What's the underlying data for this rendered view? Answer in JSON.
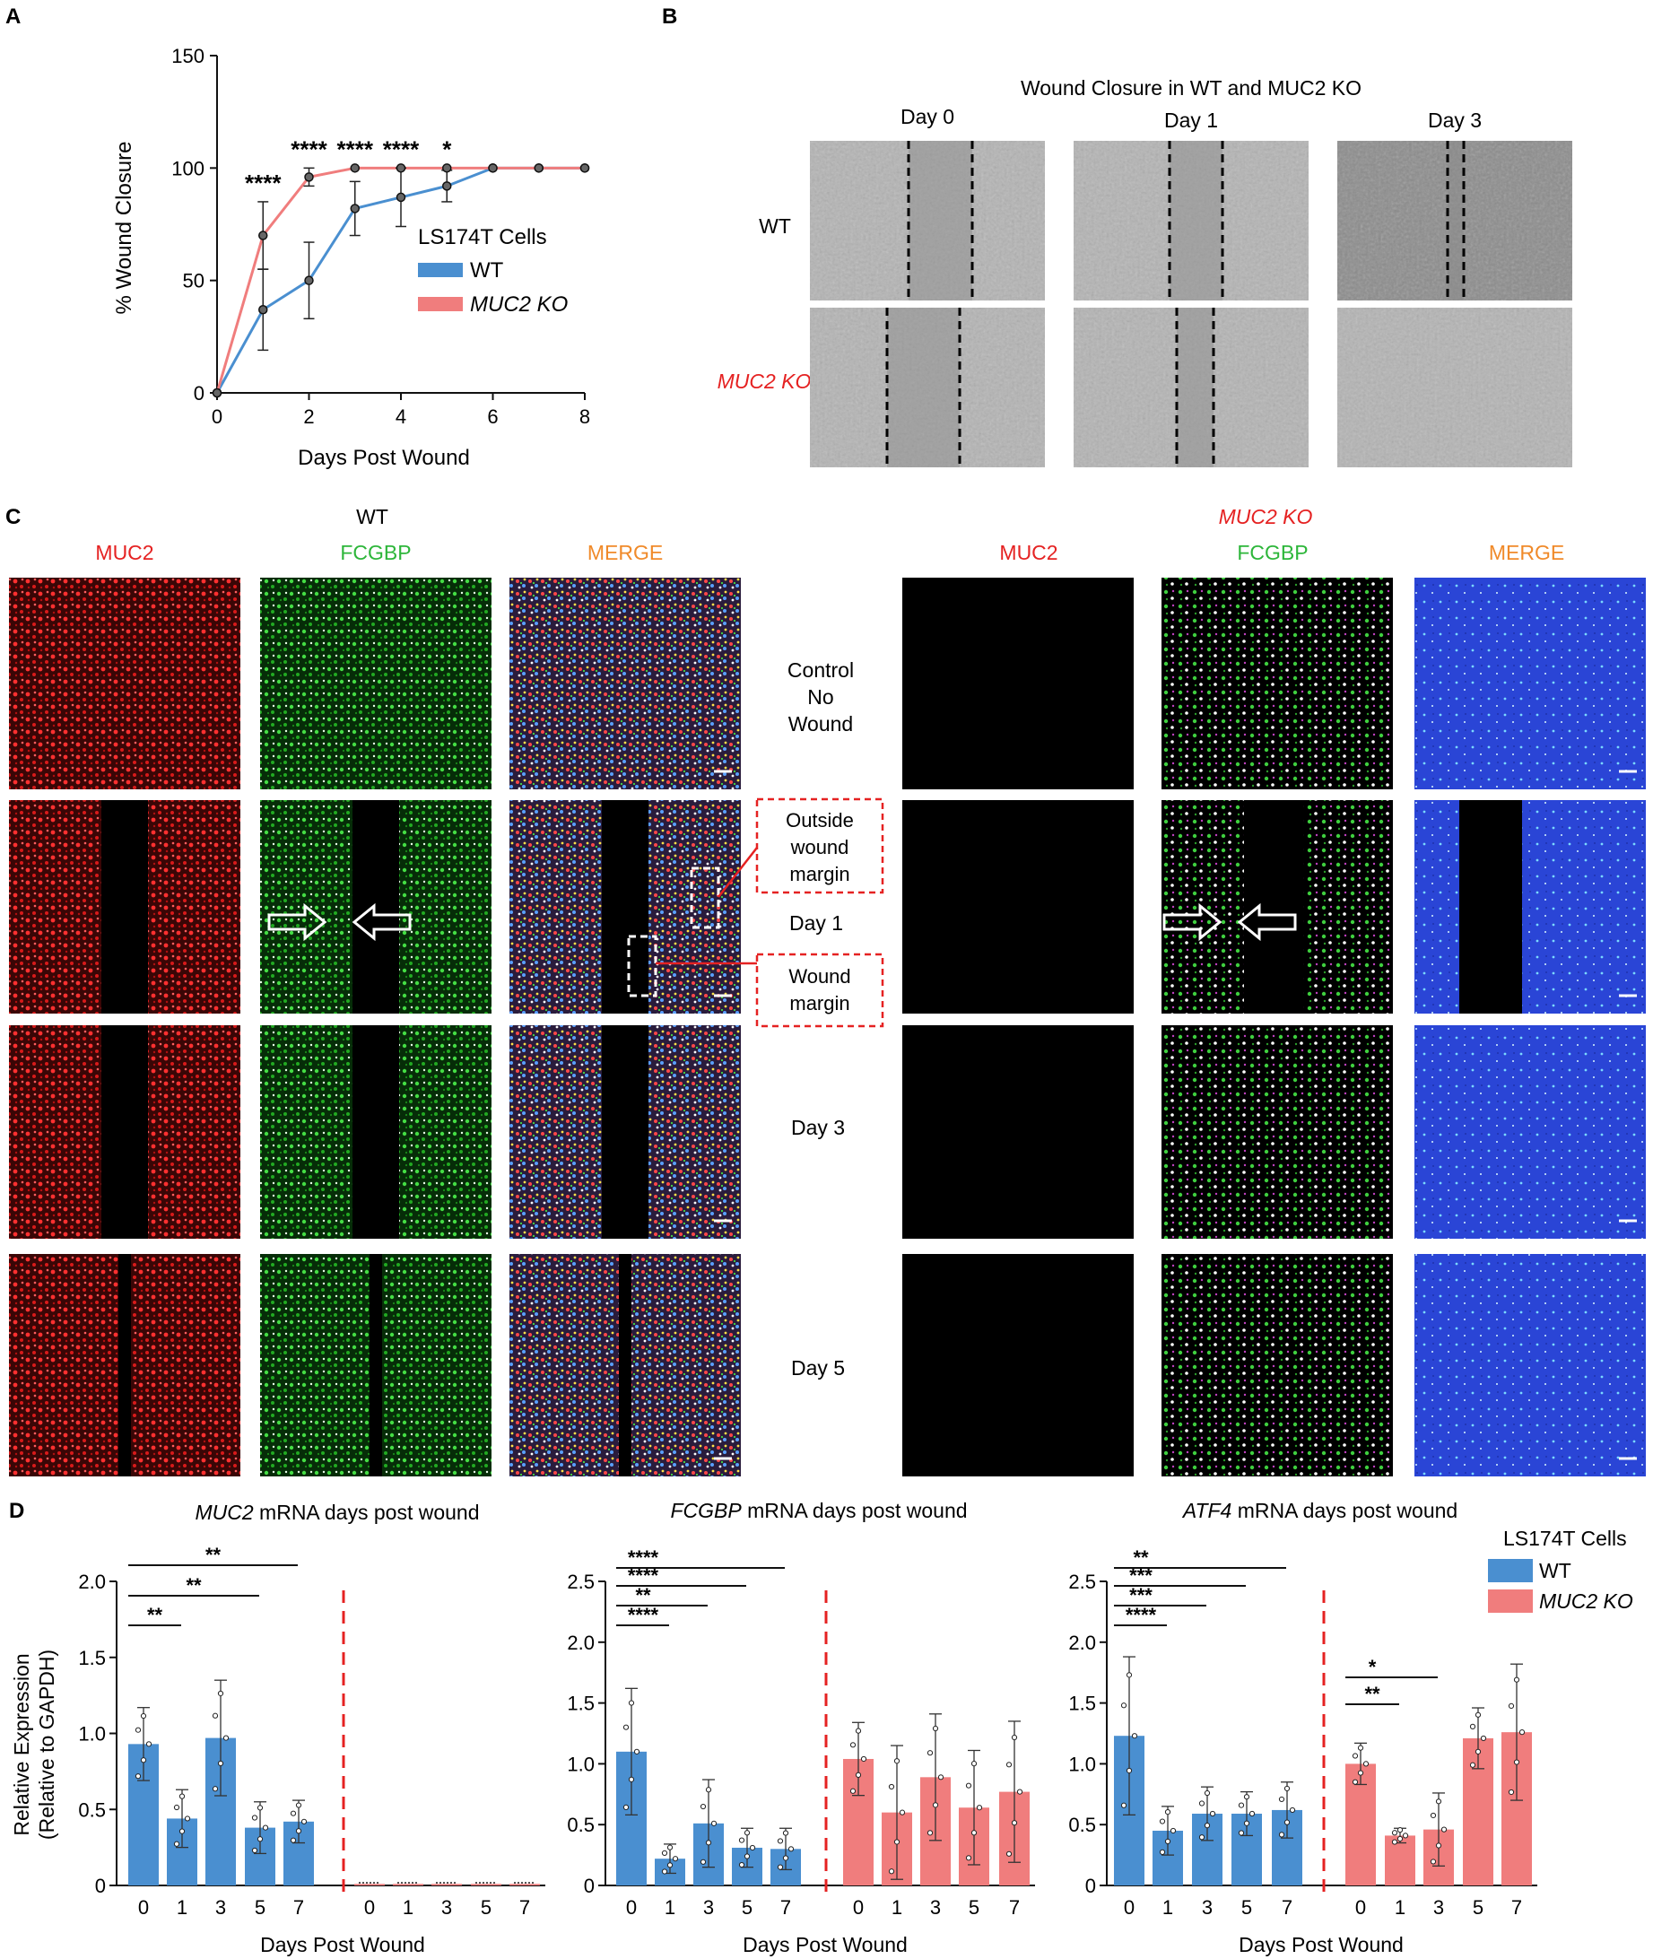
{
  "panels": {
    "a": "A",
    "b": "B",
    "c": "C",
    "d": "D"
  },
  "colors": {
    "wt": "#4a8fd0",
    "ko": "#f07d7d",
    "red_text": "#e52222",
    "green_text": "#2db63a",
    "orange_text": "#f08a2a"
  },
  "panel_a": {
    "ylabel": "% Wound Closure",
    "xlabel": "Days Post Wound",
    "legend_title": "LS174T Cells",
    "legend_wt": "WT",
    "legend_ko": "MUC2 KO",
    "stars": [
      "****",
      "****",
      "****",
      "****",
      "*"
    ]
  },
  "panel_b": {
    "title": "Wound Closure in WT and MUC2 KO",
    "cols": [
      "Day 0",
      "Day 1",
      "Day 3"
    ],
    "rows": [
      "WT",
      "MUC2 KO"
    ]
  },
  "panel_c": {
    "wt_label": "WT",
    "ko_label": "MUC2 KO",
    "channels": [
      "MUC2",
      "FCGBP",
      "MERGE"
    ],
    "rows": [
      [
        "Control",
        "No",
        "Wound"
      ],
      [
        "Day 1"
      ],
      [
        "Day 3"
      ],
      [
        "Day 5"
      ]
    ],
    "callout_outside": [
      "Outside",
      "wound",
      "margin"
    ],
    "callout_margin": [
      "Wound",
      "margin"
    ]
  },
  "panel_d": {
    "ylabel1": "Relative Expression",
    "ylabel2": "(Relative to GAPDH)",
    "xlabel": "Days Post Wound",
    "legend_title": "LS174T Cells",
    "legend_wt": "WT",
    "legend_ko": "MUC2 KO",
    "titles": [
      {
        "gene": "MUC2",
        "rest": " mRNA days post wound"
      },
      {
        "gene": "FCGBP",
        "rest": " mRNA days post wound"
      },
      {
        "gene": "ATF4",
        "rest": " mRNA days post wound"
      }
    ]
  },
  "chart_data": [
    {
      "type": "line",
      "title": "",
      "xlabel": "Days Post Wound",
      "ylabel": "% Wound Closure",
      "xlim": [
        0,
        8
      ],
      "ylim": [
        0,
        150
      ],
      "xticks": [
        0,
        2,
        4,
        6,
        8
      ],
      "yticks": [
        0,
        50,
        100,
        150
      ],
      "legend_title": "LS174T Cells",
      "series": [
        {
          "name": "WT",
          "x": [
            0,
            1,
            2,
            3,
            4,
            5,
            6,
            7,
            8
          ],
          "y": [
            0,
            37,
            50,
            82,
            87,
            92,
            100,
            100,
            100
          ],
          "err": [
            0,
            18,
            17,
            12,
            13,
            7,
            0,
            0,
            0
          ]
        },
        {
          "name": "MUC2 KO",
          "x": [
            0,
            1,
            2,
            3,
            4,
            5,
            6,
            7,
            8
          ],
          "y": [
            0,
            70,
            96,
            100,
            100,
            100,
            100,
            100,
            100
          ],
          "err": [
            0,
            15,
            4,
            0,
            0,
            0,
            0,
            0,
            0
          ]
        }
      ],
      "annotations": [
        {
          "x": 1,
          "text": "****"
        },
        {
          "x": 2,
          "text": "****"
        },
        {
          "x": 3,
          "text": "****"
        },
        {
          "x": 4,
          "text": "****"
        },
        {
          "x": 5,
          "text": "*"
        }
      ]
    },
    {
      "type": "bar",
      "title": "MUC2 mRNA days post wound",
      "ylabel": "Relative Expression (Relative to GAPDH)",
      "xlabel": "Days Post Wound",
      "ylim": [
        0,
        2.0
      ],
      "yticks": [
        0,
        0.5,
        1.0,
        1.5,
        2.0
      ],
      "categories": [
        "0",
        "1",
        "3",
        "5",
        "7"
      ],
      "series": [
        {
          "name": "WT",
          "values": [
            0.93,
            0.44,
            0.97,
            0.38,
            0.42
          ],
          "err": [
            0.24,
            0.19,
            0.38,
            0.17,
            0.14
          ]
        },
        {
          "name": "MUC2 KO",
          "values": [
            0.01,
            0.01,
            0.01,
            0.01,
            0.01
          ],
          "err": [
            0,
            0,
            0,
            0,
            0
          ]
        }
      ],
      "brackets": [
        {
          "from": "0",
          "to": "1",
          "text": "**"
        },
        {
          "from": "0",
          "to": "5",
          "text": "**"
        },
        {
          "from": "0",
          "to": "7",
          "text": "**"
        }
      ]
    },
    {
      "type": "bar",
      "title": "FCGBP mRNA days post wound",
      "xlabel": "Days Post Wound",
      "ylim": [
        0,
        2.5
      ],
      "yticks": [
        0,
        0.5,
        1.0,
        1.5,
        2.0,
        2.5
      ],
      "categories": [
        "0",
        "1",
        "3",
        "5",
        "7"
      ],
      "series": [
        {
          "name": "WT",
          "values": [
            1.1,
            0.22,
            0.51,
            0.31,
            0.3
          ],
          "err": [
            0.52,
            0.12,
            0.36,
            0.16,
            0.17
          ]
        },
        {
          "name": "MUC2 KO",
          "values": [
            1.04,
            0.6,
            0.89,
            0.64,
            0.77
          ],
          "err": [
            0.3,
            0.55,
            0.52,
            0.47,
            0.58
          ]
        }
      ],
      "brackets": [
        {
          "from": "0",
          "to": "1",
          "text": "****"
        },
        {
          "from": "0",
          "to": "3",
          "text": "**"
        },
        {
          "from": "0",
          "to": "5",
          "text": "****"
        },
        {
          "from": "0",
          "to": "7",
          "text": "****"
        }
      ]
    },
    {
      "type": "bar",
      "title": "ATF4 mRNA days post wound",
      "xlabel": "Days Post Wound",
      "ylim": [
        0,
        2.5
      ],
      "yticks": [
        0,
        0.5,
        1.0,
        1.5,
        2.0,
        2.5
      ],
      "categories": [
        "0",
        "1",
        "3",
        "5",
        "7"
      ],
      "series": [
        {
          "name": "WT",
          "values": [
            1.23,
            0.45,
            0.59,
            0.59,
            0.62
          ],
          "err": [
            0.65,
            0.2,
            0.22,
            0.18,
            0.23
          ]
        },
        {
          "name": "MUC2 KO",
          "values": [
            1.0,
            0.41,
            0.46,
            1.21,
            1.26
          ],
          "err": [
            0.17,
            0.06,
            0.3,
            0.25,
            0.56
          ]
        }
      ],
      "brackets": [
        {
          "series": "WT",
          "from": "0",
          "to": "1",
          "text": "****"
        },
        {
          "series": "WT",
          "from": "0",
          "to": "3",
          "text": "***"
        },
        {
          "series": "WT",
          "from": "0",
          "to": "5",
          "text": "***"
        },
        {
          "series": "WT",
          "from": "0",
          "to": "7",
          "text": "**"
        },
        {
          "series": "MUC2 KO",
          "from": "0",
          "to": "1",
          "text": "**"
        },
        {
          "series": "MUC2 KO",
          "from": "0",
          "to": "3",
          "text": "*"
        }
      ]
    }
  ]
}
